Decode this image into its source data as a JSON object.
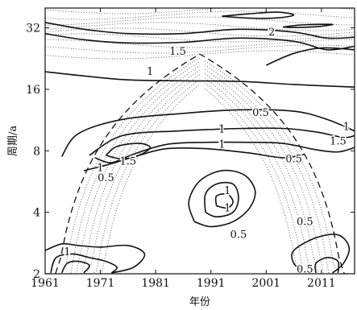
{
  "chart_data": {
    "type": "contour",
    "xlabel": "年份",
    "ylabel": "周期/a",
    "xlim": [
      1961,
      2017
    ],
    "ylim": [
      2,
      40
    ],
    "y_scale": "log2",
    "x_ticks": [
      1961,
      1971,
      1981,
      1991,
      2001,
      2011
    ],
    "y_ticks": [
      2,
      4,
      8,
      16,
      32
    ],
    "x_tick_labels": [
      "1961",
      "1971",
      "1981",
      "1991",
      "2001",
      "2011"
    ],
    "y_tick_labels": [
      "2",
      "4",
      "8",
      "16",
      "32"
    ],
    "grid": false,
    "cone_of_influence": "dashed",
    "shading": "dotted outside cone of influence",
    "contour_levels": [
      0.5,
      1,
      1.5,
      2
    ],
    "contours": [
      {
        "level": 0.5,
        "points": [
          [
            1961,
            19.5
          ],
          [
            1968,
            18.6
          ],
          [
            1976,
            17.8
          ],
          [
            1986,
            17.6
          ],
          [
            1996,
            17.5
          ],
          [
            2006,
            16.9
          ],
          [
            2017,
            16.4
          ]
        ]
      },
      {
        "level": 1,
        "points": [
          [
            1961,
            30
          ],
          [
            1968,
            28
          ],
          [
            1976,
            27
          ],
          [
            1986,
            27.2
          ],
          [
            1996,
            28.5
          ],
          [
            2006,
            27.5
          ],
          [
            2012,
            25
          ],
          [
            2017,
            26
          ]
        ]
      },
      {
        "level": 1,
        "points": [
          [
            2001,
            21
          ],
          [
            2006,
            24
          ],
          [
            2011,
            25.5
          ],
          [
            2017,
            25
          ]
        ]
      },
      {
        "level": 1.5,
        "points": [
          [
            1961,
            34
          ],
          [
            1968,
            31.5
          ],
          [
            1976,
            30
          ],
          [
            1986,
            30
          ],
          [
            1996,
            31.5
          ],
          [
            2006,
            30.5
          ],
          [
            2012,
            28.5
          ],
          [
            2017,
            28.8
          ]
        ]
      },
      {
        "level": 2,
        "points": [
          [
            2004,
            32.3
          ],
          [
            2007,
            33
          ],
          [
            2011,
            33.3
          ],
          [
            2013,
            33.2
          ],
          [
            2010,
            32.4
          ],
          [
            2006,
            32.1
          ],
          [
            2004,
            32.3
          ]
        ]
      },
      {
        "level": 2,
        "points": [
          [
            1993,
            36.5
          ],
          [
            1998,
            37.5
          ],
          [
            2003,
            38.2
          ],
          [
            2006,
            37
          ],
          [
            2003,
            35.8
          ],
          [
            1998,
            35.7
          ],
          [
            1993,
            36.5
          ]
        ]
      },
      {
        "level": 0.5,
        "points": [
          [
            1964,
            7.5
          ],
          [
            1967,
            9.7
          ],
          [
            1975,
            11.4
          ],
          [
            1986,
            12.2
          ],
          [
            1996,
            12.7
          ],
          [
            2006,
            12.5
          ],
          [
            2012,
            11.4
          ],
          [
            2017,
            10
          ]
        ]
      },
      {
        "level": 0.5,
        "points": [
          [
            1968,
            6.4
          ],
          [
            1972,
            6.8
          ],
          [
            1978,
            7.6
          ],
          [
            1983,
            8.2
          ],
          [
            1990,
            8.2
          ],
          [
            1998,
            7.8
          ],
          [
            2004,
            7.4
          ],
          [
            2008,
            7.7
          ]
        ]
      },
      {
        "level": 1,
        "points": [
          [
            1969,
            7.6
          ],
          [
            1975,
            9.5
          ],
          [
            1985,
            10
          ],
          [
            1992,
            10.2
          ],
          [
            1997,
            10.3
          ],
          [
            2004,
            10.3
          ],
          [
            2010,
            9.9
          ],
          [
            2015,
            9.3
          ],
          [
            2017,
            9.5
          ]
        ]
      },
      {
        "level": 1,
        "points": [
          [
            1970,
            7.4
          ],
          [
            1973,
            7
          ],
          [
            1977,
            7.7
          ],
          [
            1983,
            8.6
          ],
          [
            1990,
            8.8
          ],
          [
            1998,
            8.8
          ],
          [
            2004,
            8.7
          ],
          [
            2010,
            8.1
          ],
          [
            2014,
            7.9
          ],
          [
            2017,
            8.3
          ]
        ]
      },
      {
        "level": 1.5,
        "points": [
          [
            1972,
            7.6
          ],
          [
            1974,
            8.4
          ],
          [
            1978,
            8.7
          ],
          [
            1980,
            8.3
          ],
          [
            1978,
            7.6
          ],
          [
            1975,
            7.3
          ],
          [
            1972,
            7.6
          ]
        ]
      },
      {
        "level": 0.5,
        "points": [
          [
            1988,
            3.6
          ],
          [
            1987,
            4.5
          ],
          [
            1989,
            5.7
          ],
          [
            1993,
            6.4
          ],
          [
            1997,
            6.1
          ],
          [
            1999,
            5.1
          ],
          [
            1998,
            4.2
          ],
          [
            1995,
            3.6
          ],
          [
            1991,
            3.4
          ],
          [
            1988,
            3.6
          ]
        ]
      },
      {
        "level": 1,
        "points": [
          [
            1990,
            4
          ],
          [
            1990,
            4.9
          ],
          [
            1992,
            5.5
          ],
          [
            1995,
            5.5
          ],
          [
            1996,
            4.7
          ],
          [
            1995,
            4
          ],
          [
            1992,
            3.8
          ],
          [
            1990,
            4
          ]
        ]
      },
      {
        "level": 1.5,
        "points": [
          [
            1992,
            4.3
          ],
          [
            1992,
            4.8
          ],
          [
            1994,
            4.9
          ],
          [
            1995,
            4.5
          ],
          [
            1994,
            4.2
          ],
          [
            1992,
            4.3
          ]
        ]
      },
      {
        "level": 0.5,
        "points": [
          [
            1961,
            2.6
          ],
          [
            1964,
            2.8
          ],
          [
            1967,
            2.75
          ],
          [
            1971,
            2.7
          ],
          [
            1976,
            2.75
          ],
          [
            1979,
            2.5
          ],
          [
            1977,
            2.15
          ],
          [
            1973,
            2.02
          ]
        ]
      },
      {
        "level": 1,
        "points": [
          [
            1962,
            2.02
          ],
          [
            1963,
            2.4
          ],
          [
            1966,
            2.5
          ],
          [
            1969,
            2.4
          ],
          [
            1972,
            2.3
          ],
          [
            1974,
            2.15
          ],
          [
            1973,
            2.02
          ]
        ]
      },
      {
        "level": 1.5,
        "points": [
          [
            1964,
            2.02
          ],
          [
            1965,
            2.25
          ],
          [
            1967,
            2.3
          ],
          [
            1969,
            2.2
          ],
          [
            1968,
            2.02
          ]
        ]
      },
      {
        "level": 0.5,
        "points": [
          [
            2008,
            2.02
          ],
          [
            2006,
            2.25
          ],
          [
            2006,
            2.6
          ],
          [
            2010,
            3
          ],
          [
            2014,
            3.1
          ],
          [
            2016,
            2.7
          ],
          [
            2015,
            2.25
          ],
          [
            2013,
            2.02
          ]
        ]
      },
      {
        "level": 1,
        "points": [
          [
            2010,
            2.02
          ],
          [
            2010,
            2.25
          ],
          [
            2012,
            2.4
          ],
          [
            2014,
            2.3
          ],
          [
            2014,
            2.02
          ]
        ]
      }
    ],
    "contour_labels": [
      {
        "text": "2",
        "x": 2002,
        "y": 30.5
      },
      {
        "text": "1.5",
        "x": 1985,
        "y": 24.5
      },
      {
        "text": "1",
        "x": 1980,
        "y": 19.5
      },
      {
        "text": "0.5",
        "x": 2000,
        "y": 12.3
      },
      {
        "text": "1",
        "x": 1993,
        "y": 10.2
      },
      {
        "text": "1",
        "x": 2015.5,
        "y": 10.5
      },
      {
        "text": "1.5",
        "x": 2014,
        "y": 8.9
      },
      {
        "text": "1",
        "x": 1993,
        "y": 8.6
      },
      {
        "text": "0.5",
        "x": 2006,
        "y": 7.3
      },
      {
        "text": "1.5",
        "x": 1976,
        "y": 7.1
      },
      {
        "text": "1",
        "x": 1971,
        "y": 6.6
      },
      {
        "text": "0.5",
        "x": 1972,
        "y": 5.9
      },
      {
        "text": "1",
        "x": 1994,
        "y": 5.1
      },
      {
        "text": "1",
        "x": 1994,
        "y": 4.2
      },
      {
        "text": "0.5",
        "x": 1996,
        "y": 3.1
      },
      {
        "text": "0.5",
        "x": 2008,
        "y": 3.6
      },
      {
        "text": "1",
        "x": 1965,
        "y": 2.55
      },
      {
        "text": "0.5",
        "x": 2008,
        "y": 2.1
      }
    ]
  }
}
